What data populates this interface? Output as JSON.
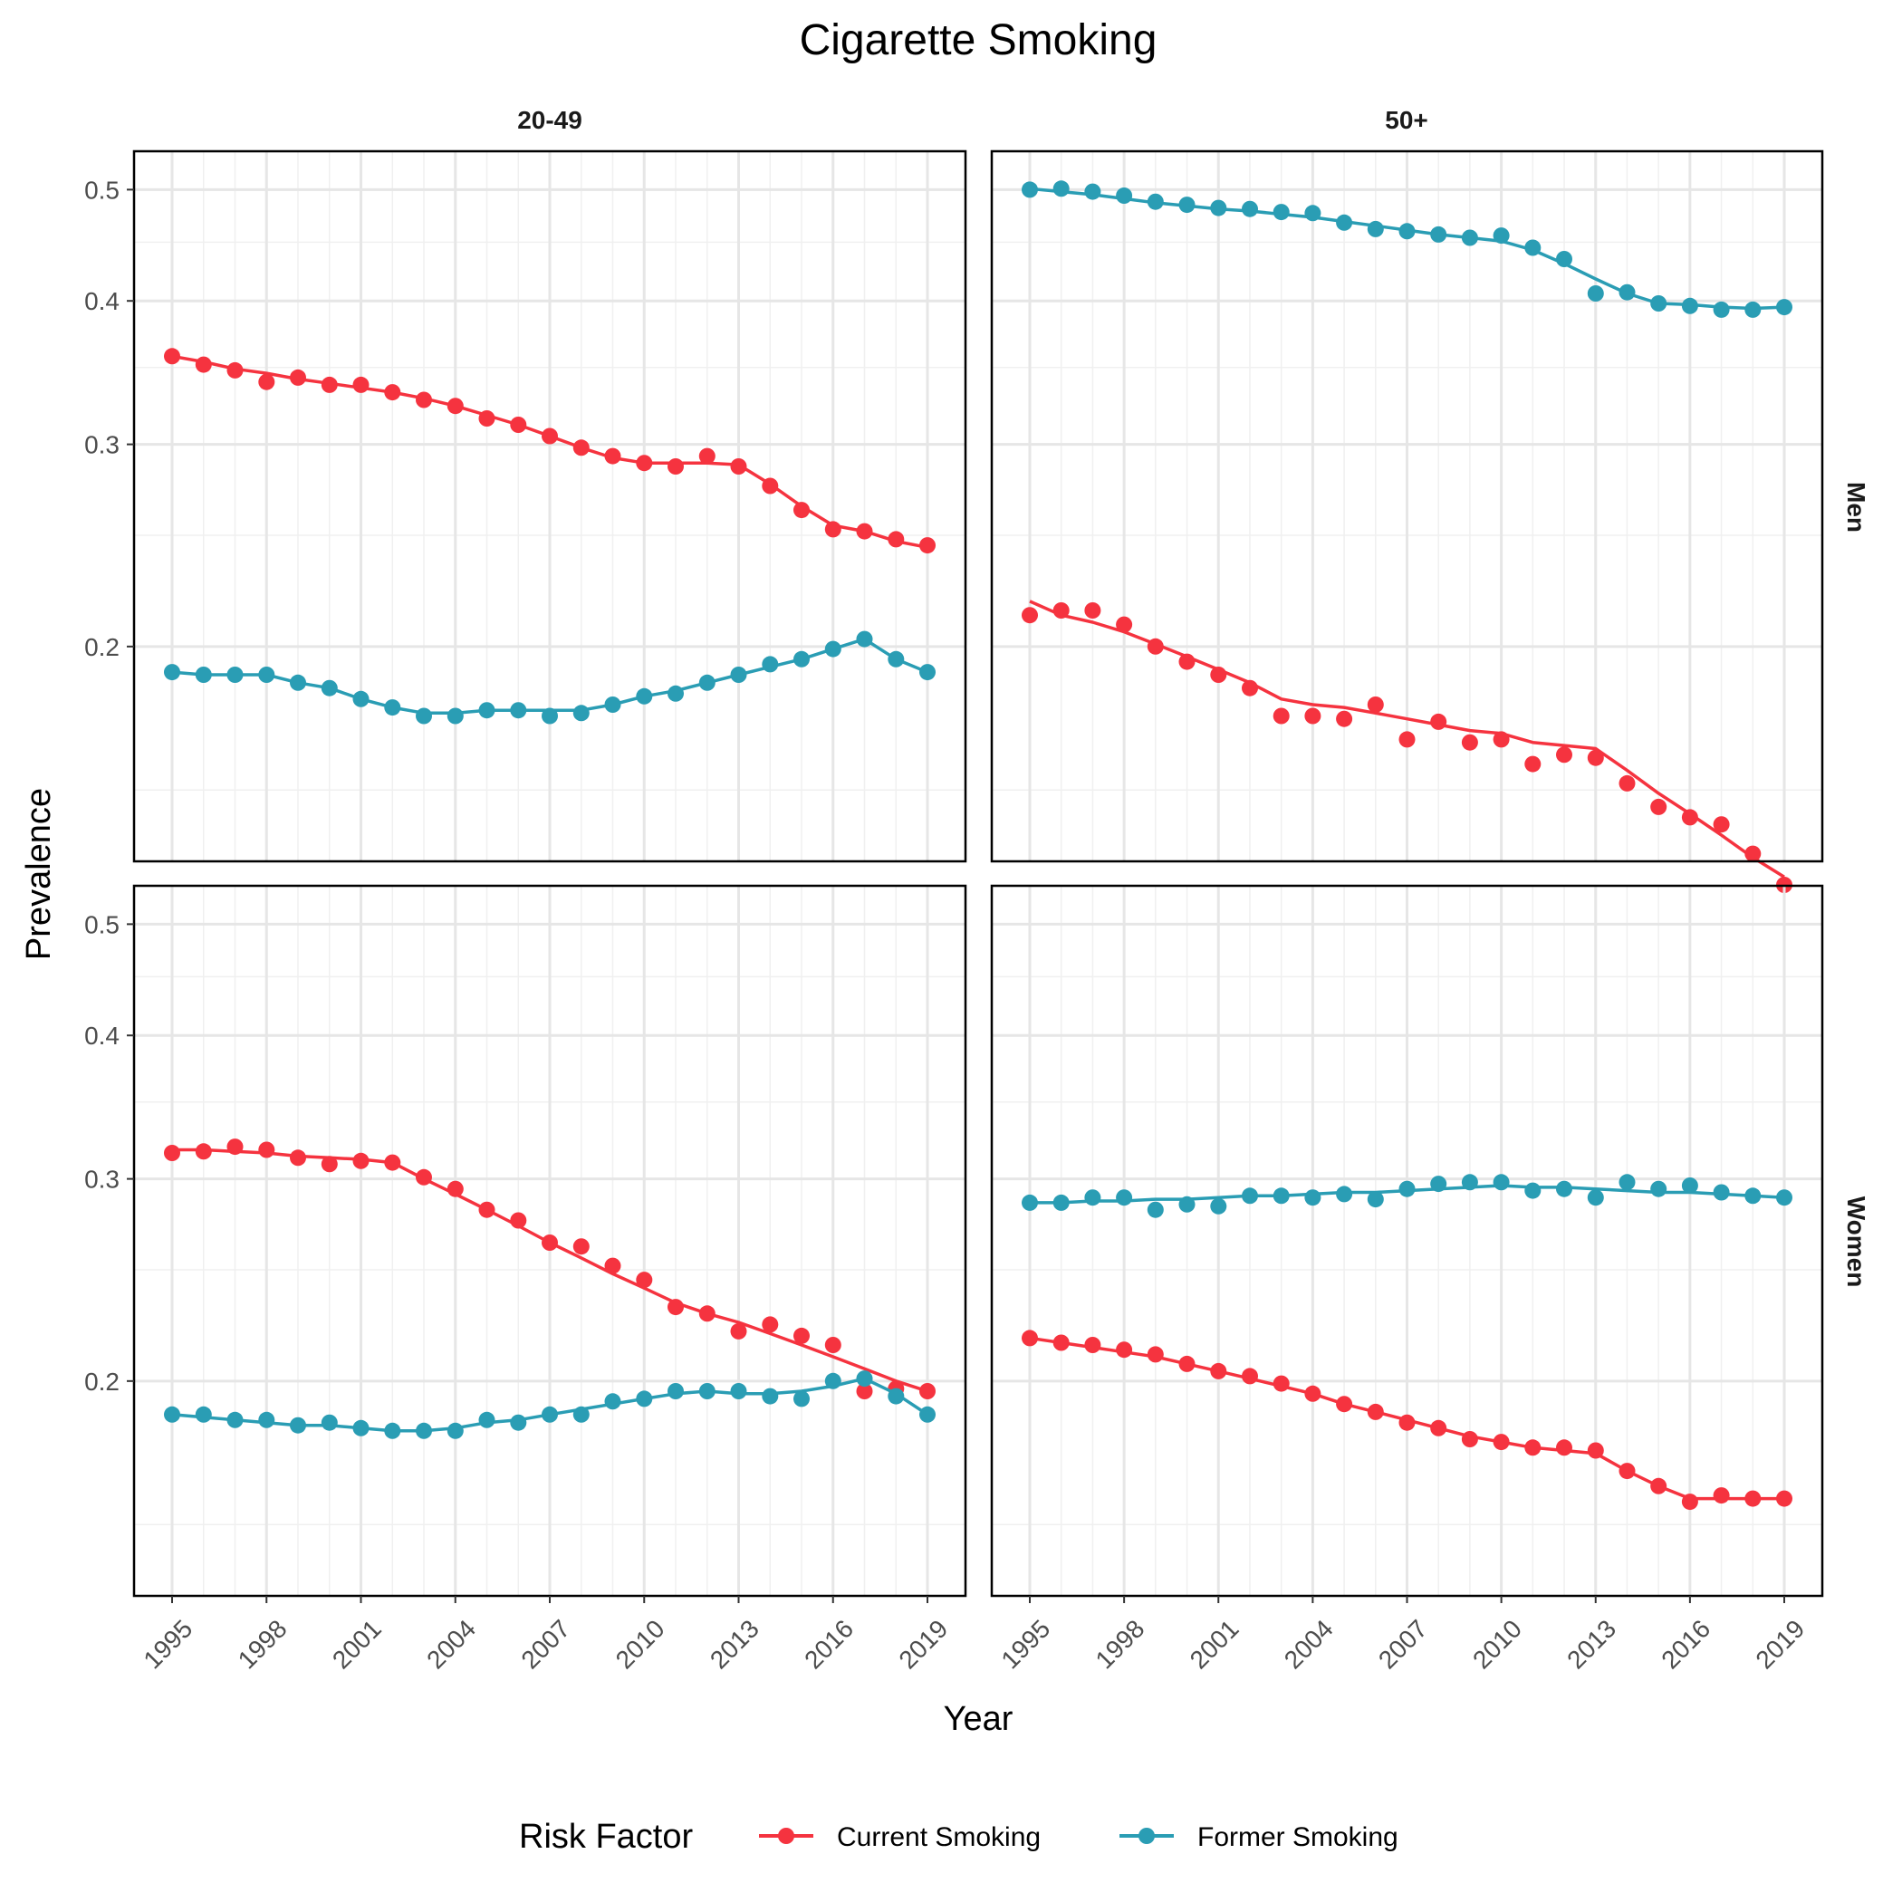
{
  "chart_data": {
    "type": "line",
    "title": "Cigarette Smoking",
    "xlabel": "Year",
    "ylabel": "Prevalence",
    "y_scale": "log",
    "ylim": [
      0.13,
      0.54
    ],
    "y_ticks": [
      "0.2",
      "0.3",
      "0.4",
      "0.5"
    ],
    "x_ticks": [
      "1995",
      "1998",
      "2001",
      "2004",
      "2007",
      "2010",
      "2013",
      "2016",
      "2019"
    ],
    "grid": true,
    "column_strips": [
      "20-49",
      "50+"
    ],
    "row_strips": [
      "Men",
      "Women"
    ],
    "legend": {
      "title": "Risk Factor",
      "position": "bottom",
      "entries": [
        {
          "label": "Current Smoking",
          "color": "#f5333f"
        },
        {
          "label": "Former Smoking",
          "color": "#2a9db4"
        }
      ]
    },
    "x": [
      1995,
      1996,
      1997,
      1998,
      1999,
      2000,
      2001,
      2002,
      2003,
      2004,
      2005,
      2006,
      2007,
      2008,
      2009,
      2010,
      2011,
      2012,
      2013,
      2014,
      2015,
      2016,
      2017,
      2018,
      2019
    ],
    "panels": [
      {
        "column": "20-49",
        "row": "Men",
        "series": [
          {
            "name": "Current Smoking",
            "points": [
              0.358,
              0.352,
              0.348,
              0.34,
              0.343,
              0.338,
              0.338,
              0.333,
              0.328,
              0.324,
              0.316,
              0.312,
              0.305,
              0.298,
              0.293,
              0.289,
              0.287,
              0.293,
              0.287,
              0.276,
              0.263,
              0.253,
              0.252,
              0.248,
              0.245
            ],
            "fit": [
              0.358,
              0.354,
              0.349,
              0.346,
              0.342,
              0.339,
              0.336,
              0.333,
              0.329,
              0.324,
              0.318,
              0.312,
              0.305,
              0.298,
              0.292,
              0.289,
              0.289,
              0.289,
              0.288,
              0.277,
              0.265,
              0.255,
              0.252,
              0.247,
              0.244
            ]
          },
          {
            "name": "Former Smoking",
            "points": [
              0.19,
              0.189,
              0.189,
              0.189,
              0.186,
              0.184,
              0.18,
              0.177,
              0.174,
              0.174,
              0.176,
              0.176,
              0.174,
              0.175,
              0.178,
              0.181,
              0.182,
              0.186,
              0.189,
              0.193,
              0.195,
              0.199,
              0.203,
              0.195,
              0.19
            ],
            "fit": [
              0.19,
              0.189,
              0.189,
              0.189,
              0.186,
              0.184,
              0.18,
              0.177,
              0.175,
              0.175,
              0.176,
              0.176,
              0.176,
              0.176,
              0.178,
              0.181,
              0.183,
              0.186,
              0.189,
              0.192,
              0.195,
              0.199,
              0.203,
              0.195,
              0.19
            ]
          }
        ]
      },
      {
        "column": "50+",
        "row": "Men",
        "series": [
          {
            "name": "Current Smoking",
            "points": [
              0.213,
              0.215,
              0.215,
              0.209,
              0.2,
              0.194,
              0.189,
              0.184,
              0.174,
              0.174,
              0.173,
              0.178,
              0.166,
              0.172,
              0.165,
              0.166,
              0.158,
              0.161,
              0.16,
              0.152,
              0.145,
              0.142,
              0.14,
              0.132,
              0.124
            ],
            "fit": [
              0.219,
              0.213,
              0.21,
              0.206,
              0.201,
              0.196,
              0.191,
              0.186,
              0.18,
              0.178,
              0.177,
              0.175,
              0.173,
              0.171,
              0.169,
              0.168,
              0.165,
              0.164,
              0.163,
              0.156,
              0.149,
              0.143,
              0.137,
              0.131,
              0.126
            ]
          },
          {
            "name": "Former Smoking",
            "points": [
              0.5,
              0.501,
              0.498,
              0.494,
              0.488,
              0.485,
              0.482,
              0.481,
              0.478,
              0.477,
              0.468,
              0.462,
              0.46,
              0.457,
              0.454,
              0.456,
              0.445,
              0.435,
              0.406,
              0.407,
              0.398,
              0.396,
              0.393,
              0.393,
              0.395
            ],
            "fit": [
              0.501,
              0.498,
              0.495,
              0.491,
              0.487,
              0.484,
              0.481,
              0.479,
              0.476,
              0.473,
              0.469,
              0.465,
              0.461,
              0.457,
              0.454,
              0.451,
              0.443,
              0.431,
              0.418,
              0.406,
              0.398,
              0.397,
              0.395,
              0.394,
              0.395
            ]
          }
        ]
      },
      {
        "column": "20-49",
        "row": "Women",
        "series": [
          {
            "name": "Current Smoking",
            "points": [
              0.316,
              0.317,
              0.32,
              0.318,
              0.313,
              0.309,
              0.311,
              0.31,
              0.301,
              0.294,
              0.282,
              0.276,
              0.264,
              0.262,
              0.252,
              0.245,
              0.232,
              0.229,
              0.221,
              0.224,
              0.219,
              0.215,
              0.196,
              0.197,
              0.196
            ],
            "fit": [
              0.318,
              0.318,
              0.317,
              0.316,
              0.314,
              0.313,
              0.312,
              0.31,
              0.3,
              0.291,
              0.282,
              0.273,
              0.264,
              0.256,
              0.248,
              0.241,
              0.234,
              0.229,
              0.225,
              0.22,
              0.215,
              0.21,
              0.205,
              0.2,
              0.196
            ]
          },
          {
            "name": "Former Smoking",
            "points": [
              0.187,
              0.187,
              0.185,
              0.185,
              0.183,
              0.184,
              0.182,
              0.181,
              0.181,
              0.181,
              0.185,
              0.184,
              0.187,
              0.187,
              0.192,
              0.193,
              0.196,
              0.196,
              0.196,
              0.194,
              0.193,
              0.2,
              0.201,
              0.194,
              0.187
            ],
            "fit": [
              0.187,
              0.186,
              0.185,
              0.184,
              0.183,
              0.183,
              0.182,
              0.181,
              0.181,
              0.182,
              0.184,
              0.185,
              0.187,
              0.189,
              0.191,
              0.193,
              0.195,
              0.196,
              0.195,
              0.195,
              0.196,
              0.198,
              0.201,
              0.195,
              0.187
            ]
          }
        ]
      },
      {
        "column": "50+",
        "row": "Women",
        "series": [
          {
            "name": "Current Smoking",
            "points": [
              0.218,
              0.216,
              0.215,
              0.213,
              0.211,
              0.207,
              0.204,
              0.202,
              0.199,
              0.195,
              0.191,
              0.188,
              0.184,
              0.182,
              0.178,
              0.177,
              0.175,
              0.175,
              0.174,
              0.167,
              0.162,
              0.157,
              0.159,
              0.158,
              0.158
            ],
            "fit": [
              0.218,
              0.216,
              0.214,
              0.212,
              0.21,
              0.207,
              0.204,
              0.201,
              0.198,
              0.195,
              0.191,
              0.188,
              0.185,
              0.182,
              0.179,
              0.177,
              0.175,
              0.174,
              0.173,
              0.167,
              0.162,
              0.158,
              0.158,
              0.158,
              0.158
            ]
          },
          {
            "name": "Former Smoking",
            "points": [
              0.286,
              0.286,
              0.289,
              0.289,
              0.282,
              0.285,
              0.284,
              0.29,
              0.29,
              0.289,
              0.291,
              0.288,
              0.294,
              0.297,
              0.298,
              0.298,
              0.293,
              0.294,
              0.289,
              0.298,
              0.294,
              0.296,
              0.292,
              0.29,
              0.289
            ],
            "fit": [
              0.286,
              0.286,
              0.287,
              0.287,
              0.288,
              0.288,
              0.289,
              0.29,
              0.29,
              0.291,
              0.292,
              0.292,
              0.293,
              0.294,
              0.295,
              0.296,
              0.295,
              0.295,
              0.294,
              0.293,
              0.292,
              0.292,
              0.291,
              0.29,
              0.289
            ]
          }
        ]
      }
    ]
  }
}
